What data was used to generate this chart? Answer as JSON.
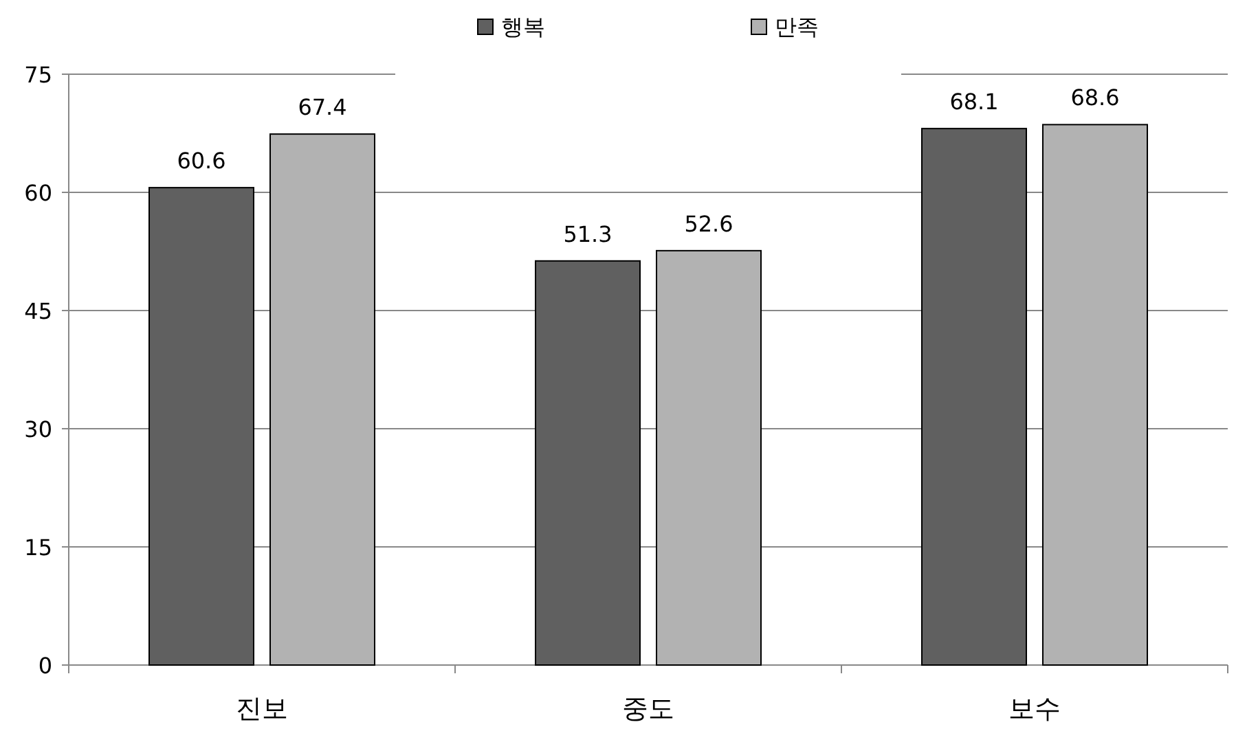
{
  "chart_data": {
    "type": "bar",
    "categories": [
      "진보",
      "중도",
      "보수"
    ],
    "series": [
      {
        "name": "행복",
        "color": "#606060",
        "values": [
          60.6,
          51.3,
          68.1
        ]
      },
      {
        "name": "만족",
        "color": "#b2b2b2",
        "values": [
          67.4,
          52.6,
          68.6
        ]
      }
    ],
    "ylim": [
      0,
      75
    ],
    "yticks": [
      0,
      15,
      30,
      45,
      60,
      75
    ],
    "grid": "y",
    "legend": "top",
    "data_labels": true
  }
}
